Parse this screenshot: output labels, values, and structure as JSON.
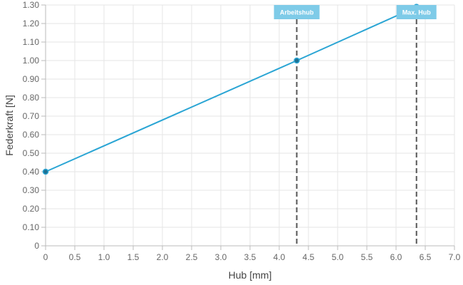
{
  "chart_data": {
    "type": "line",
    "xlabel": "Hub [mm]",
    "ylabel": "Federkraft [N]",
    "xlim": [
      0,
      7.0
    ],
    "ylim": [
      0,
      1.3
    ],
    "x_ticks": [
      "0",
      "0.5",
      "1.0",
      "1.5",
      "2.0",
      "2.5",
      "3.0",
      "3.5",
      "4.0",
      "4.5",
      "5.0",
      "5.5",
      "6.0",
      "6.5",
      "7.0"
    ],
    "y_ticks": [
      "0",
      "0.10",
      "0.20",
      "0.30",
      "0.40",
      "0.50",
      "0.60",
      "0.70",
      "0.80",
      "0.90",
      "1.00",
      "1.10",
      "1.20",
      "1.30"
    ],
    "grid": true,
    "series": [
      {
        "color": "#2aa5d4",
        "points": [
          {
            "x": 0,
            "y": 0.4
          },
          {
            "x": 4.3,
            "y": 1.0
          },
          {
            "x": 6.35,
            "y": 1.29
          }
        ]
      }
    ],
    "annotations": [
      {
        "label": "Arbeitshub",
        "x": 4.3,
        "color": "#7ecbe8"
      },
      {
        "label": "Max. Hub",
        "x": 6.35,
        "color": "#7ecbe8"
      }
    ]
  }
}
